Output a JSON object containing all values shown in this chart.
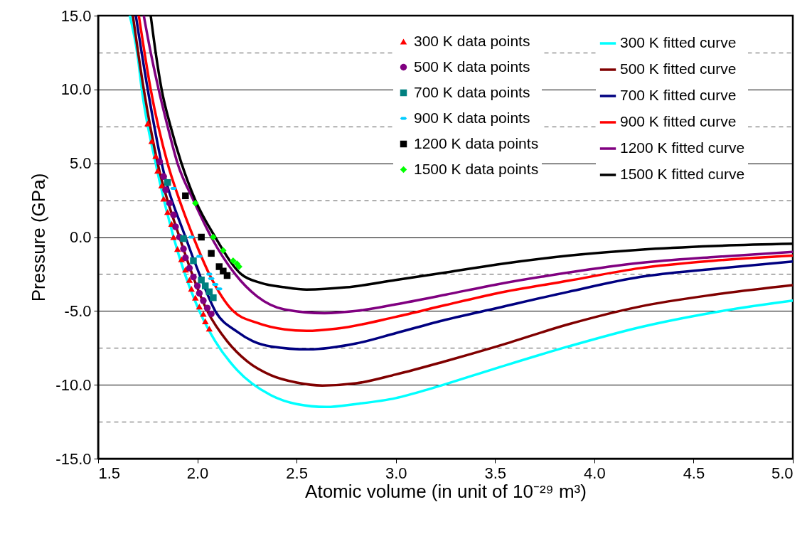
{
  "chart_data": {
    "type": "scatter",
    "xlabel": "Atomic volume (in unit of 10⁻²⁹ m³)",
    "ylabel": "Pressure (GPa)",
    "xlim": [
      1.5,
      5.0
    ],
    "ylim": [
      -15,
      15
    ],
    "xticks": [
      1.5,
      {
        "value": 2,
        "label": "2.0"
      },
      2.5,
      {
        "value": 3,
        "label": "3.0"
      },
      3.5,
      {
        "value": 4,
        "label": "4.0"
      },
      4.5,
      {
        "value": 5,
        "label": "5.0"
      }
    ],
    "yticks": [
      {
        "value": -15,
        "label": "-15.0"
      },
      {
        "value": -12.5,
        "label": null
      },
      {
        "value": -10,
        "label": "-10.0"
      },
      {
        "value": -7.5,
        "label": null
      },
      {
        "value": -5,
        "label": "-5.0"
      },
      {
        "value": -2.5,
        "label": null
      },
      {
        "value": 0,
        "label": "0.0"
      },
      {
        "value": 2.5,
        "label": null
      },
      {
        "value": 5,
        "label": "5.0"
      },
      {
        "value": 7.5,
        "label": null
      },
      {
        "value": 10,
        "label": "10.0"
      },
      {
        "value": 12.5,
        "label": null
      },
      {
        "value": 15,
        "label": "15.0"
      }
    ],
    "grid": "y",
    "legend": "top right",
    "series": [
      {
        "name": "300 K data points",
        "type": "scatter",
        "marker": "triangle",
        "color": "#ff0000",
        "x": [
          1.75,
          1.77,
          1.79,
          1.8,
          1.82,
          1.83,
          1.85,
          1.87,
          1.88,
          1.9,
          1.92,
          1.94,
          1.96,
          1.97,
          1.99,
          2.01,
          2.03,
          2.04,
          2.06
        ],
        "values": [
          7.7,
          6.5,
          5.5,
          4.5,
          3.5,
          2.6,
          1.7,
          0.9,
          0.0,
          -0.8,
          -1.5,
          -2.2,
          -2.9,
          -3.5,
          -4.1,
          -4.7,
          -5.2,
          -5.7,
          -6.2
        ]
      },
      {
        "name": "500 K data points",
        "type": "scatter",
        "marker": "circle",
        "color": "#800080",
        "x": [
          1.81,
          1.83,
          1.84,
          1.86,
          1.88,
          1.89,
          1.91,
          1.93,
          1.94,
          1.96,
          1.98,
          2.0,
          2.01,
          2.03,
          2.05,
          2.07
        ],
        "values": [
          5.1,
          4.1,
          3.2,
          2.3,
          1.5,
          0.7,
          0.0,
          -0.8,
          -1.4,
          -2.1,
          -2.7,
          -3.3,
          -3.8,
          -4.3,
          -4.8,
          -5.2
        ]
      },
      {
        "name": "700 K data points",
        "type": "scatter",
        "marker": "square",
        "color": "#008080",
        "x": [
          1.85,
          1.93,
          1.98,
          2.02,
          2.04,
          2.06,
          2.08
        ],
        "values": [
          3.7,
          -0.1,
          -1.6,
          -2.9,
          -3.3,
          -3.7,
          -4.1
        ]
      },
      {
        "name": "900 K data points",
        "type": "scatter",
        "color": "#00ccff",
        "x": [
          1.88,
          1.97,
          2.01,
          2.06,
          2.07,
          2.09,
          2.11
        ],
        "values": [
          3.3,
          0.0,
          -1.3,
          -2.5,
          -2.8,
          -3.2,
          -3.5
        ]
      },
      {
        "name": "1200 K data points",
        "type": "scatter",
        "marker": "square",
        "color": "#000000",
        "x": [
          1.94,
          2.02,
          2.07,
          2.11,
          2.13,
          2.15
        ],
        "values": [
          2.8,
          0.0,
          -1.1,
          -2.0,
          -2.3,
          -2.6
        ]
      },
      {
        "name": "1500 K data points",
        "type": "scatter",
        "marker": "diamond",
        "color": "#00ff00",
        "x": [
          1.99,
          2.08,
          2.13,
          2.18,
          2.2,
          2.21
        ],
        "values": [
          2.3,
          0.0,
          -0.9,
          -1.6,
          -1.8,
          -2.0
        ]
      },
      {
        "name": "300 K fitted curve",
        "type": "line",
        "color": "#00ffff",
        "x": [
          1.66,
          1.7,
          1.72,
          1.79,
          1.88,
          2.01,
          2.09,
          2.2,
          2.37,
          2.5,
          2.65,
          2.8,
          3.0,
          3.19,
          3.5,
          3.87,
          4.23,
          4.6,
          5.0
        ],
        "values": [
          15,
          12.2,
          10,
          5,
          0,
          -5,
          -7.05,
          -9.0,
          -10.7,
          -11.3,
          -11.5,
          -11.3,
          -10.9,
          -10.2,
          -8.9,
          -7.4,
          -6.1,
          -5.1,
          -4.3
        ]
      },
      {
        "name": "500 K fitted curve",
        "type": "line",
        "color": "#800000",
        "x": [
          1.675,
          1.73,
          1.8,
          1.91,
          2.05,
          2.15,
          2.25,
          2.37,
          2.5,
          2.63,
          2.8,
          3.0,
          3.25,
          3.51,
          3.87,
          4.23,
          4.6,
          5.0
        ],
        "values": [
          15,
          10,
          5,
          0,
          -5,
          -7.05,
          -8.4,
          -9.35,
          -9.85,
          -10.05,
          -9.9,
          -9.3,
          -8.4,
          -7.4,
          -5.9,
          -4.7,
          -3.9,
          -3.25
        ]
      },
      {
        "name": "700 K fitted curve",
        "type": "line",
        "color": "#000080",
        "x": [
          1.69,
          1.75,
          1.82,
          1.94,
          2.01,
          2.09,
          2.2,
          2.28,
          2.37,
          2.56,
          2.8,
          3.0,
          3.25,
          3.51,
          3.87,
          4.23,
          4.6,
          5.0
        ],
        "values": [
          15,
          10,
          5,
          0,
          -2.5,
          -5,
          -6.4,
          -7.05,
          -7.4,
          -7.6,
          -7.2,
          -6.5,
          -5.6,
          -4.8,
          -3.7,
          -2.7,
          -2.15,
          -1.65
        ]
      },
      {
        "name": "900 K fitted curve",
        "type": "line",
        "color": "#ff0000",
        "x": [
          1.705,
          1.765,
          1.85,
          1.91,
          1.98,
          2.06,
          2.18,
          2.3,
          2.44,
          2.55,
          2.7,
          3.0,
          3.25,
          3.51,
          3.87,
          4.23,
          4.6,
          5.0
        ],
        "values": [
          15,
          10,
          5,
          2.5,
          0,
          -2.5,
          -5,
          -5.8,
          -6.25,
          -6.35,
          -6.2,
          -5.4,
          -4.6,
          -3.8,
          -2.95,
          -2.1,
          -1.6,
          -1.25
        ]
      },
      {
        "name": "1200 K fitted curve",
        "type": "line",
        "color": "#800080",
        "x": [
          1.73,
          1.765,
          1.805,
          1.85,
          1.9,
          1.98,
          2.07,
          2.19,
          2.3,
          2.44,
          2.64,
          2.8,
          3.0,
          3.25,
          3.51,
          3.87,
          4.23,
          4.6,
          5.0
        ],
        "values": [
          15,
          12.5,
          10,
          7.5,
          5,
          2.5,
          0,
          -2.5,
          -4.0,
          -4.9,
          -5.15,
          -5.0,
          -4.55,
          -3.9,
          -3.2,
          -2.4,
          -1.75,
          -1.35,
          -1.0
        ]
      },
      {
        "name": "1500 K fitted curve",
        "type": "line",
        "color": "#000000",
        "x": [
          1.765,
          1.79,
          1.82,
          1.865,
          1.92,
          1.99,
          2.09,
          2.22,
          2.32,
          2.44,
          2.55,
          2.75,
          3.0,
          3.25,
          3.51,
          3.87,
          4.23,
          4.6,
          5.0
        ],
        "values": [
          15,
          12.5,
          10,
          7.5,
          5,
          2.5,
          0,
          -2.5,
          -3.1,
          -3.4,
          -3.55,
          -3.4,
          -2.9,
          -2.4,
          -1.85,
          -1.25,
          -0.85,
          -0.6,
          -0.45
        ]
      }
    ]
  }
}
